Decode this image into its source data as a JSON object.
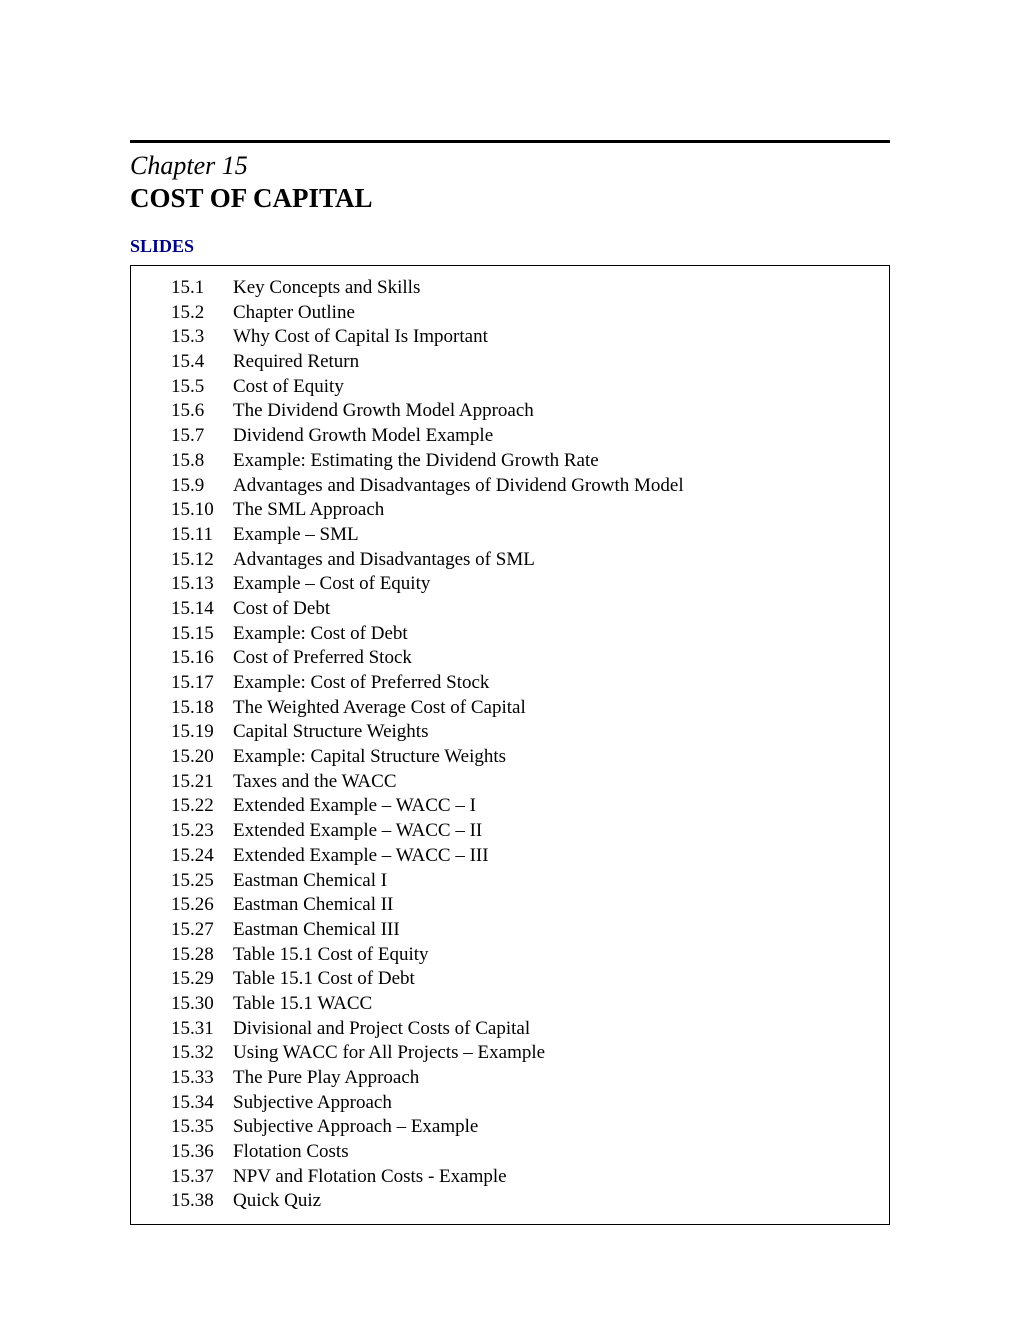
{
  "chapter": {
    "label": "Chapter 15",
    "title": "COST OF CAPITAL"
  },
  "section_heading": "SLIDES",
  "slides": [
    {
      "number": "15.1",
      "title": "Key Concepts and Skills"
    },
    {
      "number": "15.2",
      "title": "Chapter Outline"
    },
    {
      "number": "15.3",
      "title": "Why Cost of Capital Is Important"
    },
    {
      "number": "15.4",
      "title": "Required Return"
    },
    {
      "number": "15.5",
      "title": "Cost of Equity"
    },
    {
      "number": "15.6",
      "title": "The Dividend Growth Model Approach"
    },
    {
      "number": "15.7",
      "title": "Dividend Growth Model Example"
    },
    {
      "number": "15.8",
      "title": "Example: Estimating the Dividend Growth Rate"
    },
    {
      "number": "15.9",
      "title": "Advantages and Disadvantages of Dividend Growth Model"
    },
    {
      "number": "15.10",
      "title": "The SML Approach"
    },
    {
      "number": "15.11",
      "title": "Example – SML"
    },
    {
      "number": "15.12",
      "title": "Advantages and Disadvantages of SML"
    },
    {
      "number": "15.13",
      "title": "Example – Cost of Equity"
    },
    {
      "number": "15.14",
      "title": "Cost of Debt"
    },
    {
      "number": "15.15",
      "title": "Example: Cost of Debt"
    },
    {
      "number": "15.16",
      "title": "Cost of Preferred Stock"
    },
    {
      "number": "15.17",
      "title": "Example: Cost of Preferred Stock"
    },
    {
      "number": "15.18",
      "title": "The Weighted Average Cost of Capital"
    },
    {
      "number": "15.19",
      "title": "Capital Structure Weights"
    },
    {
      "number": "15.20",
      "title": "Example: Capital Structure Weights"
    },
    {
      "number": "15.21",
      "title": "Taxes and the WACC"
    },
    {
      "number": "15.22",
      "title": "Extended Example – WACC – I"
    },
    {
      "number": "15.23",
      "title": "Extended Example – WACC – II"
    },
    {
      "number": "15.24",
      "title": "Extended Example – WACC – III"
    },
    {
      "number": "15.25",
      "title": "Eastman Chemical I"
    },
    {
      "number": "15.26",
      "title": "Eastman Chemical II"
    },
    {
      "number": "15.27",
      "title": "Eastman Chemical III"
    },
    {
      "number": "15.28",
      "title": "Table 15.1 Cost of Equity"
    },
    {
      "number": "15.29",
      "title": "Table 15.1 Cost of Debt"
    },
    {
      "number": "15.30",
      "title": "Table 15.1 WACC"
    },
    {
      "number": "15.31",
      "title": "Divisional and Project Costs of Capital"
    },
    {
      "number": "15.32",
      "title": "Using WACC for All Projects – Example"
    },
    {
      "number": "15.33",
      "title": "The Pure Play Approach"
    },
    {
      "number": "15.34",
      "title": "Subjective Approach"
    },
    {
      "number": "15.35",
      "title": "Subjective Approach – Example"
    },
    {
      "number": "15.36",
      "title": "Flotation Costs"
    },
    {
      "number": "15.37",
      "title": "NPV and Flotation Costs - Example"
    },
    {
      "number": "15.38",
      "title": "Quick Quiz"
    }
  ],
  "styling": {
    "background_color": "#ffffff",
    "text_color": "#000000",
    "heading_color": "#000080",
    "divider_weight": 3,
    "body_font_size": 19,
    "chapter_label_font_size": 26,
    "chapter_title_font_size": 27,
    "section_heading_font_size": 18
  }
}
